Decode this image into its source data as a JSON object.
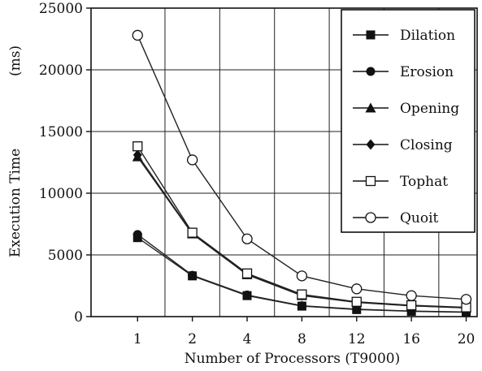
{
  "chart_data": {
    "type": "line",
    "categories": [
      "1",
      "2",
      "4",
      "8",
      "12",
      "16",
      "20"
    ],
    "xlabel": "Number of Processors (T9000)",
    "ylabel": "Execution Time",
    "ylabel_unit": "(ms)",
    "ylim": [
      0,
      25000
    ],
    "yticks": [
      "0",
      "5000",
      "10000",
      "15000",
      "20000",
      "25000"
    ],
    "grid": true,
    "legend_position": "top-right",
    "series": [
      {
        "name": "Dilation",
        "marker": "filled-square",
        "values": [
          6400,
          3300,
          1700,
          850,
          570,
          430,
          350
        ]
      },
      {
        "name": "Erosion",
        "marker": "filled-circle",
        "values": [
          6650,
          3350,
          1750,
          880,
          600,
          450,
          370
        ]
      },
      {
        "name": "Opening",
        "marker": "filled-triangle",
        "values": [
          12950,
          6700,
          3400,
          1700,
          1150,
          870,
          700
        ]
      },
      {
        "name": "Closing",
        "marker": "filled-diamond",
        "values": [
          13100,
          6750,
          3450,
          1720,
          1170,
          880,
          710
        ]
      },
      {
        "name": "Tophat",
        "marker": "open-square",
        "values": [
          13800,
          6800,
          3500,
          1800,
          1200,
          920,
          750
        ]
      },
      {
        "name": "Quoit",
        "marker": "open-circle",
        "values": [
          22800,
          12700,
          6300,
          3300,
          2250,
          1700,
          1400
        ]
      }
    ]
  }
}
